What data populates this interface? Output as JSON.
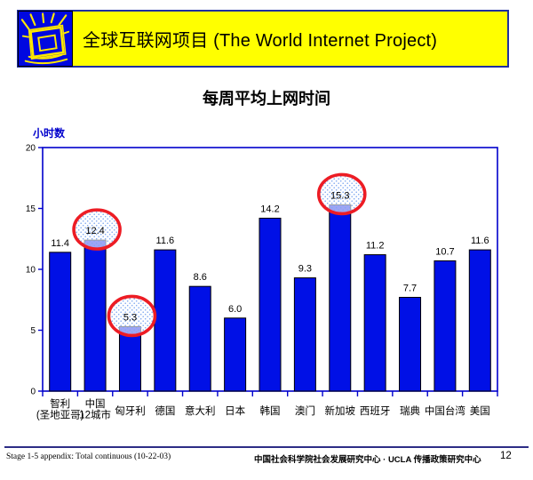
{
  "header": {
    "title": "全球互联网项目 (The World Internet Project)",
    "banner_color": "#FFFF00",
    "banner_border_color": "#1F2FA0",
    "logo_color": "#0008E0",
    "logo_icon": "sketched-monitor-with-rays"
  },
  "chart": {
    "title": "每周平均上网时间"
  },
  "chart_data": {
    "type": "bar",
    "title": "每周平均上网时间",
    "xlabel": "",
    "ylabel": "小时数",
    "categories": [
      "智利\n(圣地亚哥)",
      "中国\n12城市",
      "匈牙利",
      "德国",
      "意大利",
      "日本",
      "韩国",
      "澳门",
      "新加坡",
      "西班牙",
      "瑞典",
      "中国台湾",
      "美国"
    ],
    "values": [
      11.4,
      12.4,
      5.3,
      11.6,
      8.6,
      6.0,
      14.2,
      9.3,
      15.3,
      11.2,
      7.7,
      10.7,
      11.6
    ],
    "data_labels": [
      "11.4",
      "12.4",
      "5.3",
      "11.6",
      "8.6",
      "6.0",
      "14.2",
      "9.3",
      "15.3",
      "11.2",
      "7.7",
      "10.7",
      "11.6"
    ],
    "highlighted_indices": [
      1,
      2,
      8
    ],
    "ylim": [
      0,
      20
    ],
    "yticks": [
      0,
      5,
      10,
      15,
      20
    ],
    "grid": false,
    "legend": false,
    "bar_color": "#0010E6",
    "bar_border_color": "#000000",
    "axis_color": "#0000CC",
    "highlight_circle_color": "#ED1C24",
    "label_color": "#000000"
  },
  "footer": {
    "left_text": "Stage 1-5 appendix: Total continuous (10-22-03)",
    "center_text": "中国社会科学院社会发展研究中心 · UCLA 传播政策研究中心",
    "page_number": "12",
    "line_color": "#2D2D86"
  }
}
